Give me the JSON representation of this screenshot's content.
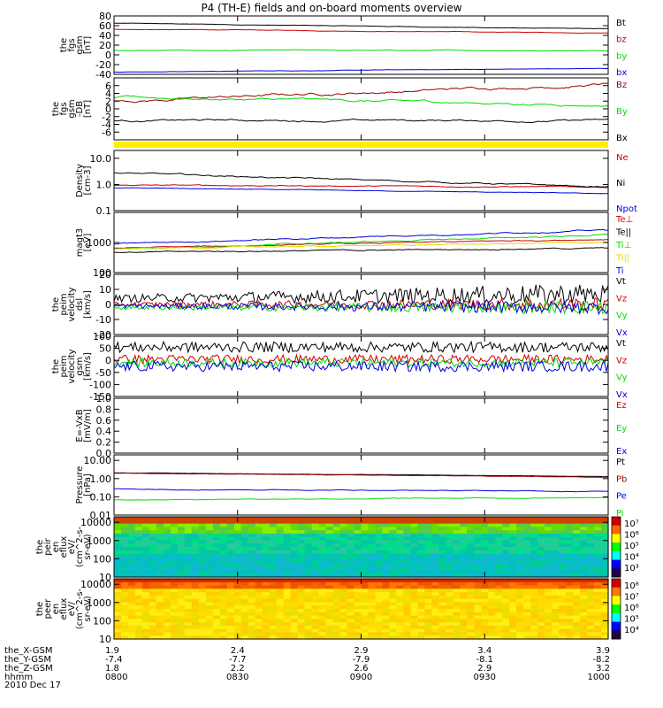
{
  "title": "P4 (TH-E) fields and on-board moments overview",
  "date_label": "2010 Dec 17",
  "colors": {
    "black": "#000000",
    "red": "#cc0000",
    "green": "#00dd00",
    "blue": "#0000dd",
    "darkred": "#990000",
    "yellow": "#ffee00"
  },
  "chart_data": [
    {
      "type": "line",
      "ylabel": [
        "the",
        "fgs",
        "gsm",
        "[nT]"
      ],
      "ylim": [
        -40,
        80
      ],
      "yticks": [
        -40,
        -20,
        0,
        20,
        40,
        60,
        80
      ],
      "series": [
        {
          "name": "Bt",
          "color": "#000000",
          "start": 65,
          "end": 53,
          "noise": 0.5
        },
        {
          "name": "bz",
          "color": "#cc0000",
          "start": 53,
          "end": 45,
          "noise": 0.5
        },
        {
          "name": "by",
          "color": "#00dd00",
          "start": 9,
          "end": 9,
          "noise": 0.6
        },
        {
          "name": "bx",
          "color": "#0000dd",
          "start": -35,
          "end": -28,
          "noise": 0.4
        }
      ]
    },
    {
      "type": "line",
      "ylabel": [
        "the",
        "fgs",
        "gsm",
        "-DB",
        "[nT]"
      ],
      "ylim": [
        -8,
        8
      ],
      "yticks": [
        -6,
        -4,
        -2,
        0,
        2,
        4,
        6
      ],
      "series": [
        {
          "name": "Bz",
          "color": "#990000",
          "start": 2,
          "end": 6.5,
          "noise": 0.35
        },
        {
          "name": "By",
          "color": "#00dd00",
          "start": 3,
          "end": 1,
          "noise": 0.3
        },
        {
          "name": "Bx",
          "color": "#000000",
          "start": -3,
          "end": -3,
          "noise": 0.25
        }
      ]
    },
    {
      "type": "line",
      "log": true,
      "ylabel": [
        "Density",
        "[cm-3]"
      ],
      "ylim": [
        0.1,
        20
      ],
      "yticks": [
        0.1,
        1.0,
        10.0
      ],
      "series": [
        {
          "name": "Ne",
          "color": "#cc0000",
          "start": 0.95,
          "end": 0.8,
          "noise": 0.01
        },
        {
          "name": "Ni",
          "color": "#000000",
          "start": 2.8,
          "end": 0.8,
          "noise": 0.015
        },
        {
          "name": "Npot",
          "color": "#0000dd",
          "start": 0.75,
          "end": 0.45,
          "noise": 0.005
        }
      ]
    },
    {
      "type": "line",
      "log": true,
      "ylabel": [
        "magt3",
        "[eV]"
      ],
      "ylim": [
        100,
        10000
      ],
      "yticks": [
        100,
        1000
      ],
      "series": [
        {
          "name": "Te⊥",
          "color": "#cc0000",
          "start": 650,
          "end": 1300,
          "noise": 0.01
        },
        {
          "name": "Te||",
          "color": "#000000",
          "start": 470,
          "end": 650,
          "noise": 0.01
        },
        {
          "name": "Ti⊥",
          "color": "#00dd00",
          "start": 600,
          "end": 1800,
          "noise": 0.012
        },
        {
          "name": "Ti||",
          "color": "#dddd00",
          "start": 620,
          "end": 1000,
          "noise": 0.01
        },
        {
          "name": "Ti",
          "color": "#0000dd",
          "start": 900,
          "end": 2600,
          "noise": 0.012
        }
      ]
    },
    {
      "type": "line",
      "ylabel": [
        "the",
        "peim",
        "velocity",
        "dsl",
        "[km/s]"
      ],
      "ylim": [
        -20,
        20
      ],
      "yticks": [
        -20,
        -10,
        0,
        10,
        20
      ],
      "series": [
        {
          "name": "Vt",
          "color": "#000000",
          "start": 4,
          "end": 7,
          "noise": 4
        },
        {
          "name": "Vz",
          "color": "#cc0000",
          "start": 0,
          "end": 0,
          "noise": 2.5
        },
        {
          "name": "Vy",
          "color": "#00dd00",
          "start": -2,
          "end": -2,
          "noise": 2.5
        },
        {
          "name": "Vx",
          "color": "#0000dd",
          "start": -1,
          "end": -2,
          "noise": 2.5
        }
      ]
    },
    {
      "type": "line",
      "ylabel": [
        "the",
        "peim",
        "velocity",
        "gsm",
        "[km/s]"
      ],
      "ylim": [
        -150,
        100
      ],
      "yticks": [
        -150,
        -100,
        -50,
        0,
        50,
        100
      ],
      "series": [
        {
          "name": "Vt",
          "color": "#000000",
          "start": 55,
          "end": 55,
          "noise": 22
        },
        {
          "name": "Vz",
          "color": "#cc0000",
          "start": 5,
          "end": 5,
          "noise": 18
        },
        {
          "name": "Vy",
          "color": "#00dd00",
          "start": -10,
          "end": -10,
          "noise": 18
        },
        {
          "name": "Vx",
          "color": "#0000dd",
          "start": -25,
          "end": -25,
          "noise": 22
        }
      ]
    },
    {
      "type": "line",
      "ylabel": [
        "E=-VxB",
        "[mV/m]"
      ],
      "ylim": [
        0,
        1
      ],
      "yticks": [
        0.0,
        0.2,
        0.4,
        0.6,
        0.8,
        1.0
      ],
      "series": [
        {
          "name": "Ez",
          "color": "#cc0000"
        },
        {
          "name": "Ey",
          "color": "#00dd00"
        },
        {
          "name": "Ex",
          "color": "#0000dd"
        }
      ]
    },
    {
      "type": "line",
      "log": true,
      "ylabel": [
        "Pressure",
        "[nPa]"
      ],
      "ylim": [
        0.01,
        20
      ],
      "yticks": [
        0.01,
        0.1,
        1.0,
        10.0
      ],
      "series": [
        {
          "name": "Pt",
          "color": "#000000",
          "start": 2.1,
          "end": 1.3,
          "noise": 0.005
        },
        {
          "name": "Pb",
          "color": "#990000",
          "start": 2.0,
          "end": 1.2,
          "noise": 0.005
        },
        {
          "name": "Pe",
          "color": "#0000dd",
          "start": 0.27,
          "end": 0.2,
          "noise": 0.01
        },
        {
          "name": "Pi",
          "color": "#00dd00",
          "start": 0.07,
          "end": 0.09,
          "noise": 0.01
        }
      ]
    },
    {
      "type": "heatmap",
      "ylabel": [
        "the",
        "peir",
        "en",
        "eflux",
        "eV/",
        "(cm^2-s-",
        "sr-eV)"
      ],
      "ylim": [
        10,
        20000
      ],
      "yticks": [
        10,
        100,
        1000,
        10000
      ],
      "colorbar_ticks": [
        "10³",
        "10⁴",
        "10⁵",
        "10⁶",
        "10⁷"
      ]
    },
    {
      "type": "heatmap",
      "ylabel": [
        "the",
        "peer",
        "en",
        "eflux",
        "eV/",
        "(cm^2-s-",
        "sr-eV)"
      ],
      "ylim": [
        10,
        20000
      ],
      "yticks": [
        10,
        100,
        1000,
        10000
      ],
      "colorbar_ticks": [
        "10⁴",
        "10⁵",
        "10⁶",
        "10⁷",
        "10⁸"
      ]
    }
  ],
  "ephemeris": {
    "rows": [
      {
        "label": "the_X-GSM",
        "values": [
          "1.9",
          "2.4",
          "2.9",
          "3.4",
          "3.9"
        ]
      },
      {
        "label": "the_Y-GSM",
        "values": [
          "-7.4",
          "-7.7",
          "-7.9",
          "-8.1",
          "-8.2"
        ]
      },
      {
        "label": "the_Z-GSM",
        "values": [
          "1.8",
          "2.2",
          "2.6",
          "2.9",
          "3.2"
        ]
      },
      {
        "label": "hhmm",
        "values": [
          "0800",
          "0830",
          "0900",
          "0930",
          "1000"
        ]
      }
    ]
  }
}
